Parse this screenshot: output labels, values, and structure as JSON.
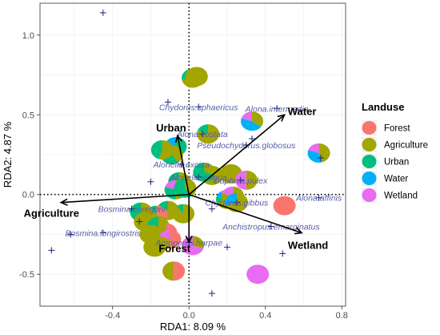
{
  "chart_data": {
    "type": "scatter",
    "title": "",
    "xlabel": "RDA1: 8.09 %",
    "ylabel": "RDA2: 4.87 %",
    "xlim": [
      -0.78,
      0.82
    ],
    "ylim": [
      -0.7,
      1.2
    ],
    "x_ticks": [
      {
        "value": -0.4,
        "label": "-0.4"
      },
      {
        "value": 0,
        "label": "0.0"
      },
      {
        "value": 0.4,
        "label": "0.4"
      },
      {
        "value": 0.8,
        "label": "0.8"
      }
    ],
    "y_ticks": [
      {
        "value": -0.5,
        "label": "-0.5"
      },
      {
        "value": 0,
        "label": "0.0"
      },
      {
        "value": 0.5,
        "label": "0.5"
      },
      {
        "value": 1.0,
        "label": "1.0"
      }
    ],
    "grid": true,
    "legend": {
      "title": "Landuse",
      "placement": "right",
      "entries": [
        {
          "name": "Forest",
          "color": "#F8766D"
        },
        {
          "name": "Agriculture",
          "color": "#A3A500"
        },
        {
          "name": "Urban",
          "color": "#00BF7D"
        },
        {
          "name": "Water",
          "color": "#00B0F6"
        },
        {
          "name": "Wetland",
          "color": "#E76BF3"
        }
      ]
    },
    "env_vectors": [
      {
        "name": "Water",
        "x": 0.5,
        "y": 0.5
      },
      {
        "name": "Urban",
        "x": -0.06,
        "y": 0.37
      },
      {
        "name": "Agriculture",
        "x": -0.67,
        "y": -0.05
      },
      {
        "name": "Forest",
        "x": 0.0,
        "y": -0.3
      },
      {
        "name": "Wetland",
        "x": 0.59,
        "y": -0.24
      }
    ],
    "species": [
      {
        "name": "Chydorus.sphaericus",
        "x": 0.05,
        "y": 0.55
      },
      {
        "name": "Alona.intermedia",
        "x": 0.46,
        "y": 0.54
      },
      {
        "name": "Alona.costata",
        "x": 0.07,
        "y": 0.38
      },
      {
        "name": "Pseudochydorus.globosus",
        "x": 0.3,
        "y": 0.31
      },
      {
        "name": "Alonella.excisa",
        "x": -0.04,
        "y": 0.19
      },
      {
        "name": "Alonella.exigua",
        "x": 0.05,
        "y": 0.11
      },
      {
        "name": "Daphnia.pulex",
        "x": 0.27,
        "y": 0.09
      },
      {
        "name": "Alona.affinis",
        "x": 0.68,
        "y": -0.02
      },
      {
        "name": "Chydorus.gibbus",
        "x": 0.25,
        "y": -0.05
      },
      {
        "name": "Bosmina.coregoni",
        "x": -0.3,
        "y": -0.09
      },
      {
        "name": "Anchistropus.emarginatus",
        "x": 0.43,
        "y": -0.2
      },
      {
        "name": "Bosmina.longirostris",
        "x": -0.45,
        "y": -0.24
      },
      {
        "name": "Acroperus.harpae",
        "x": 0.0,
        "y": -0.3
      }
    ],
    "extra_species_points": [
      {
        "x": -0.45,
        "y": 1.14
      },
      {
        "x": -0.11,
        "y": 0.58
      },
      {
        "x": -0.72,
        "y": -0.35
      },
      {
        "x": -0.62,
        "y": -0.25
      },
      {
        "x": 0.12,
        "y": -0.62
      },
      {
        "x": 0.49,
        "y": -0.37
      },
      {
        "x": 0.69,
        "y": 0.23
      },
      {
        "x": -0.2,
        "y": 0.08
      },
      {
        "x": -0.26,
        "y": -0.17
      },
      {
        "x": 0.12,
        "y": -0.09
      },
      {
        "x": 0.2,
        "y": -0.33
      },
      {
        "x": 0.33,
        "y": 0.35
      }
    ],
    "sites": [
      {
        "x": 0.02,
        "y": 0.73,
        "shares": [
          0,
          0.72,
          0.28,
          0,
          0
        ]
      },
      {
        "x": 0.04,
        "y": 0.74,
        "shares": [
          0,
          1,
          0,
          0,
          0
        ]
      },
      {
        "x": 0.33,
        "y": 0.46,
        "shares": [
          0,
          0.35,
          0,
          0.45,
          0.2
        ]
      },
      {
        "x": 0.1,
        "y": 0.38,
        "shares": [
          0,
          0.8,
          0.2,
          0,
          0
        ]
      },
      {
        "x": -0.07,
        "y": 0.3,
        "shares": [
          0,
          0,
          0.7,
          0.3,
          0
        ]
      },
      {
        "x": -0.09,
        "y": 0.25,
        "shares": [
          0,
          0.4,
          0.6,
          0,
          0
        ]
      },
      {
        "x": -0.14,
        "y": 0.28,
        "shares": [
          0,
          0.55,
          0.45,
          0,
          0
        ]
      },
      {
        "x": 0.68,
        "y": 0.26,
        "shares": [
          0,
          0.45,
          0,
          0.35,
          0.2
        ]
      },
      {
        "x": 0.12,
        "y": 0.12,
        "shares": [
          0,
          0.7,
          0.3,
          0,
          0
        ]
      },
      {
        "x": 0.22,
        "y": 0.13,
        "shares": [
          0,
          1,
          0,
          0,
          0
        ]
      },
      {
        "x": 0.08,
        "y": 0.14,
        "shares": [
          0,
          0.3,
          0.7,
          0,
          0
        ]
      },
      {
        "x": 0.3,
        "y": 0.09,
        "shares": [
          0,
          0.5,
          0,
          0,
          0.5
        ]
      },
      {
        "x": -0.05,
        "y": 0.08,
        "shares": [
          0,
          0.6,
          0.4,
          0,
          0
        ]
      },
      {
        "x": -0.07,
        "y": 0.03,
        "shares": [
          0,
          0.5,
          0.3,
          0,
          0.2
        ]
      },
      {
        "x": -0.02,
        "y": 0.04,
        "shares": [
          0,
          0.4,
          0.6,
          0,
          0
        ]
      },
      {
        "x": 0.2,
        "y": -0.03,
        "shares": [
          0.1,
          0.6,
          0.1,
          0.1,
          0.1
        ]
      },
      {
        "x": 0.23,
        "y": -0.01,
        "shares": [
          0,
          0.8,
          0,
          0,
          0.2
        ]
      },
      {
        "x": 0.25,
        "y": -0.05,
        "shares": [
          0,
          0.7,
          0,
          0.3,
          0
        ]
      },
      {
        "x": -0.11,
        "y": -0.1,
        "shares": [
          0,
          0.8,
          0.2,
          0,
          0
        ]
      },
      {
        "x": -0.03,
        "y": -0.12,
        "shares": [
          0,
          0.9,
          0.1,
          0,
          0
        ]
      },
      {
        "x": -0.17,
        "y": -0.13,
        "shares": [
          0.3,
          0.6,
          0.1,
          0,
          0
        ]
      },
      {
        "x": -0.25,
        "y": -0.11,
        "shares": [
          0,
          0.5,
          0.5,
          0,
          0
        ]
      },
      {
        "x": -0.23,
        "y": -0.17,
        "shares": [
          0,
          1,
          0,
          0,
          0
        ]
      },
      {
        "x": -0.16,
        "y": -0.2,
        "shares": [
          0,
          0.7,
          0.3,
          0,
          0
        ]
      },
      {
        "x": -0.12,
        "y": -0.24,
        "shares": [
          0.6,
          0.4,
          0,
          0,
          0
        ]
      },
      {
        "x": -0.2,
        "y": -0.25,
        "shares": [
          0,
          1,
          0,
          0,
          0
        ]
      },
      {
        "x": -0.1,
        "y": -0.28,
        "shares": [
          0.5,
          0.3,
          0,
          0,
          0.2
        ]
      },
      {
        "x": -0.18,
        "y": -0.33,
        "shares": [
          0,
          1,
          0,
          0,
          0
        ]
      },
      {
        "x": 0.02,
        "y": -0.32,
        "shares": [
          0,
          0.3,
          0,
          0,
          0.7
        ]
      },
      {
        "x": -0.08,
        "y": -0.48,
        "shares": [
          0.5,
          0.5,
          0,
          0,
          0
        ]
      },
      {
        "x": 0.5,
        "y": -0.07,
        "shares": [
          1,
          0,
          0,
          0,
          0
        ]
      },
      {
        "x": 0.36,
        "y": -0.5,
        "shares": [
          0,
          0,
          0,
          0,
          1
        ]
      }
    ]
  }
}
